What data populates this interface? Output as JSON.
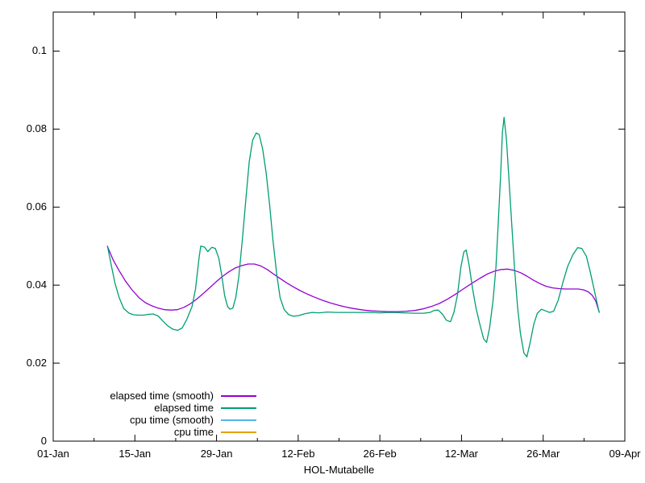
{
  "figure": {
    "background": "#ffffff",
    "axis_color": "#000000",
    "text_color": "#000000"
  },
  "chart_data": {
    "type": "line",
    "title": "",
    "xlabel": "HOL-Mutabelle",
    "ylabel": "",
    "grid": false,
    "legend_position": "inside bottom-left",
    "x_axis": {
      "unit": "days since 01-Jan",
      "range_days": [
        0,
        98
      ],
      "tick_days": [
        0,
        14,
        28,
        42,
        56,
        70,
        84,
        98
      ],
      "tick_labels": [
        "01-Jan",
        "15-Jan",
        "29-Jan",
        "12-Feb",
        "26-Feb",
        "12-Mar",
        "26-Mar",
        "09-Apr"
      ],
      "minor_tick_days": [
        7,
        21,
        35,
        49,
        63,
        77,
        91
      ]
    },
    "y_axis": {
      "range": [
        0,
        0.11
      ],
      "tick_values": [
        0,
        0.02,
        0.04,
        0.06,
        0.08,
        0.1
      ],
      "tick_labels": [
        "0",
        "0.02",
        "0.04",
        "0.06",
        "0.08",
        "0.1"
      ]
    },
    "series": [
      {
        "name": "elapsed time (smooth)",
        "color": "#9400d3",
        "points": [
          [
            9.3,
            0.0499
          ],
          [
            10.3,
            0.0464
          ],
          [
            11.3,
            0.0437
          ],
          [
            12.4,
            0.041
          ],
          [
            13.5,
            0.0388
          ],
          [
            14.7,
            0.0368
          ],
          [
            15.8,
            0.0355
          ],
          [
            16.9,
            0.0347
          ],
          [
            18.0,
            0.0341
          ],
          [
            19.1,
            0.0337
          ],
          [
            20.2,
            0.0336
          ],
          [
            21.3,
            0.0337
          ],
          [
            22.4,
            0.0343
          ],
          [
            23.5,
            0.0352
          ],
          [
            24.6,
            0.0364
          ],
          [
            25.7,
            0.0378
          ],
          [
            26.8,
            0.0393
          ],
          [
            27.9,
            0.0408
          ],
          [
            29.0,
            0.0422
          ],
          [
            30.1,
            0.0434
          ],
          [
            31.2,
            0.0444
          ],
          [
            32.3,
            0.045
          ],
          [
            33.4,
            0.0454
          ],
          [
            34.5,
            0.0454
          ],
          [
            35.6,
            0.0449
          ],
          [
            36.7,
            0.044
          ],
          [
            37.8,
            0.0428
          ],
          [
            38.9,
            0.0417
          ],
          [
            40.0,
            0.0406
          ],
          [
            41.1,
            0.0396
          ],
          [
            42.2,
            0.0387
          ],
          [
            43.4,
            0.0378
          ],
          [
            44.8,
            0.0369
          ],
          [
            46.2,
            0.0361
          ],
          [
            47.6,
            0.0354
          ],
          [
            49.0,
            0.0348
          ],
          [
            50.4,
            0.0343
          ],
          [
            51.8,
            0.0339
          ],
          [
            53.2,
            0.0336
          ],
          [
            54.6,
            0.0334
          ],
          [
            56.0,
            0.0333
          ],
          [
            57.5,
            0.0332
          ],
          [
            59.0,
            0.0332
          ],
          [
            60.5,
            0.0333
          ],
          [
            62.0,
            0.0335
          ],
          [
            63.4,
            0.0339
          ],
          [
            64.8,
            0.0345
          ],
          [
            66.2,
            0.0353
          ],
          [
            67.6,
            0.0364
          ],
          [
            69.0,
            0.0377
          ],
          [
            70.4,
            0.0391
          ],
          [
            71.8,
            0.0405
          ],
          [
            73.2,
            0.0418
          ],
          [
            74.5,
            0.0429
          ],
          [
            75.7,
            0.0436
          ],
          [
            76.8,
            0.044
          ],
          [
            77.9,
            0.0441
          ],
          [
            79.0,
            0.0438
          ],
          [
            80.1,
            0.0432
          ],
          [
            81.2,
            0.0423
          ],
          [
            82.3,
            0.0413
          ],
          [
            83.4,
            0.0404
          ],
          [
            84.5,
            0.0397
          ],
          [
            85.6,
            0.0393
          ],
          [
            86.7,
            0.0391
          ],
          [
            87.8,
            0.039
          ],
          [
            88.9,
            0.039
          ],
          [
            90.0,
            0.039
          ],
          [
            90.9,
            0.0388
          ],
          [
            91.7,
            0.0383
          ],
          [
            92.4,
            0.0374
          ],
          [
            93.0,
            0.036
          ],
          [
            93.6,
            0.0331
          ]
        ]
      },
      {
        "name": "elapsed time",
        "color": "#009e73",
        "points": [
          [
            9.3,
            0.05
          ],
          [
            9.9,
            0.0455
          ],
          [
            10.6,
            0.0404
          ],
          [
            11.3,
            0.0368
          ],
          [
            12.1,
            0.034
          ],
          [
            13.0,
            0.0328
          ],
          [
            13.8,
            0.0324
          ],
          [
            14.7,
            0.0323
          ],
          [
            15.5,
            0.0323
          ],
          [
            16.3,
            0.0325
          ],
          [
            17.1,
            0.0326
          ],
          [
            18.0,
            0.0321
          ],
          [
            18.8,
            0.0308
          ],
          [
            19.6,
            0.0296
          ],
          [
            20.5,
            0.0287
          ],
          [
            21.3,
            0.0284
          ],
          [
            22.1,
            0.029
          ],
          [
            22.9,
            0.0312
          ],
          [
            23.8,
            0.0345
          ],
          [
            24.4,
            0.039
          ],
          [
            25.0,
            0.047
          ],
          [
            25.3,
            0.05
          ],
          [
            25.9,
            0.0498
          ],
          [
            26.5,
            0.0486
          ],
          [
            27.2,
            0.0497
          ],
          [
            27.8,
            0.0494
          ],
          [
            28.4,
            0.0468
          ],
          [
            28.9,
            0.0424
          ],
          [
            29.4,
            0.0372
          ],
          [
            29.9,
            0.0345
          ],
          [
            30.3,
            0.0338
          ],
          [
            30.8,
            0.0341
          ],
          [
            31.3,
            0.0368
          ],
          [
            31.8,
            0.042
          ],
          [
            32.4,
            0.0512
          ],
          [
            33.0,
            0.0614
          ],
          [
            33.6,
            0.0716
          ],
          [
            34.2,
            0.0772
          ],
          [
            34.8,
            0.079
          ],
          [
            35.3,
            0.0786
          ],
          [
            35.9,
            0.075
          ],
          [
            36.5,
            0.0688
          ],
          [
            37.1,
            0.0606
          ],
          [
            37.7,
            0.0512
          ],
          [
            38.3,
            0.043
          ],
          [
            38.9,
            0.0368
          ],
          [
            39.6,
            0.0337
          ],
          [
            40.4,
            0.0324
          ],
          [
            41.2,
            0.032
          ],
          [
            42.1,
            0.0322
          ],
          [
            43.2,
            0.0327
          ],
          [
            44.4,
            0.033
          ],
          [
            45.6,
            0.0329
          ],
          [
            47.0,
            0.0331
          ],
          [
            48.5,
            0.033
          ],
          [
            50.0,
            0.033
          ],
          [
            52.0,
            0.033
          ],
          [
            54.0,
            0.033
          ],
          [
            56.0,
            0.0329
          ],
          [
            58.0,
            0.033
          ],
          [
            60.0,
            0.0329
          ],
          [
            62.0,
            0.0328
          ],
          [
            63.5,
            0.0328
          ],
          [
            64.6,
            0.033
          ],
          [
            65.3,
            0.0335
          ],
          [
            66.0,
            0.0336
          ],
          [
            66.7,
            0.0326
          ],
          [
            67.4,
            0.031
          ],
          [
            68.1,
            0.0306
          ],
          [
            68.7,
            0.033
          ],
          [
            69.3,
            0.0375
          ],
          [
            69.9,
            0.0447
          ],
          [
            70.4,
            0.0485
          ],
          [
            70.8,
            0.049
          ],
          [
            71.3,
            0.0452
          ],
          [
            71.9,
            0.039
          ],
          [
            72.5,
            0.034
          ],
          [
            73.2,
            0.0296
          ],
          [
            73.8,
            0.0262
          ],
          [
            74.3,
            0.0253
          ],
          [
            74.8,
            0.029
          ],
          [
            75.4,
            0.036
          ],
          [
            75.9,
            0.0445
          ],
          [
            76.3,
            0.056
          ],
          [
            76.7,
            0.068
          ],
          [
            77.0,
            0.079
          ],
          [
            77.3,
            0.083
          ],
          [
            77.7,
            0.0775
          ],
          [
            78.1,
            0.068
          ],
          [
            78.6,
            0.056
          ],
          [
            79.1,
            0.044
          ],
          [
            79.6,
            0.0345
          ],
          [
            80.1,
            0.0276
          ],
          [
            80.7,
            0.0226
          ],
          [
            81.2,
            0.0216
          ],
          [
            81.8,
            0.0255
          ],
          [
            82.4,
            0.03
          ],
          [
            83.0,
            0.0328
          ],
          [
            83.7,
            0.0338
          ],
          [
            84.4,
            0.0334
          ],
          [
            85.1,
            0.033
          ],
          [
            85.8,
            0.0333
          ],
          [
            86.6,
            0.0362
          ],
          [
            87.4,
            0.0408
          ],
          [
            88.2,
            0.0448
          ],
          [
            89.1,
            0.0478
          ],
          [
            89.9,
            0.0496
          ],
          [
            90.6,
            0.0494
          ],
          [
            91.4,
            0.0474
          ],
          [
            92.1,
            0.0432
          ],
          [
            92.8,
            0.0384
          ],
          [
            93.3,
            0.035
          ],
          [
            93.6,
            0.033
          ]
        ]
      },
      {
        "name": "cpu time (smooth)",
        "color": "#56b4e9",
        "points": []
      },
      {
        "name": "cpu time",
        "color": "#e69f00",
        "points": []
      }
    ]
  }
}
